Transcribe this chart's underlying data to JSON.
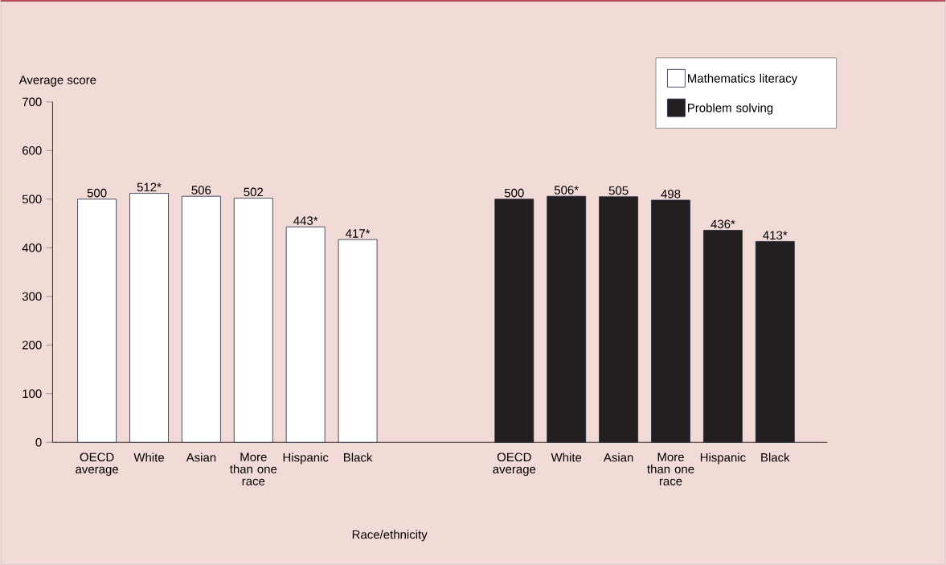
{
  "chart_data": {
    "type": "bar",
    "xlabel": "Race/ethnicity",
    "ylabel": "Average score",
    "categories": [
      "OECD average",
      "White",
      "Asian",
      "More than one race",
      "Hispanic",
      "Black",
      null,
      null,
      "OECD average",
      "White",
      "Asian",
      "More than one race",
      "Hispanic",
      "Black"
    ],
    "series": [
      {
        "name": "Mathematics literacy",
        "color": "#ffffff",
        "values": [
          500,
          512,
          506,
          502,
          443,
          417,
          null,
          null,
          null,
          null,
          null,
          null,
          null,
          null
        ],
        "value_labels": [
          "500",
          "512*",
          "506",
          "502",
          "443*",
          "417*",
          null,
          null,
          null,
          null,
          null,
          null,
          null,
          null
        ]
      },
      {
        "name": "Problem solving",
        "color": "#231f20",
        "values": [
          null,
          null,
          null,
          null,
          null,
          null,
          null,
          null,
          500,
          506,
          505,
          498,
          436,
          413
        ],
        "value_labels": [
          null,
          null,
          null,
          null,
          null,
          null,
          null,
          null,
          "500",
          "506*",
          "505",
          "498",
          "436*",
          "413*"
        ]
      }
    ],
    "ylim": [
      0,
      700
    ],
    "yticks": [
      0,
      100,
      200,
      300,
      400,
      500,
      600,
      700
    ],
    "legend": "top right"
  }
}
